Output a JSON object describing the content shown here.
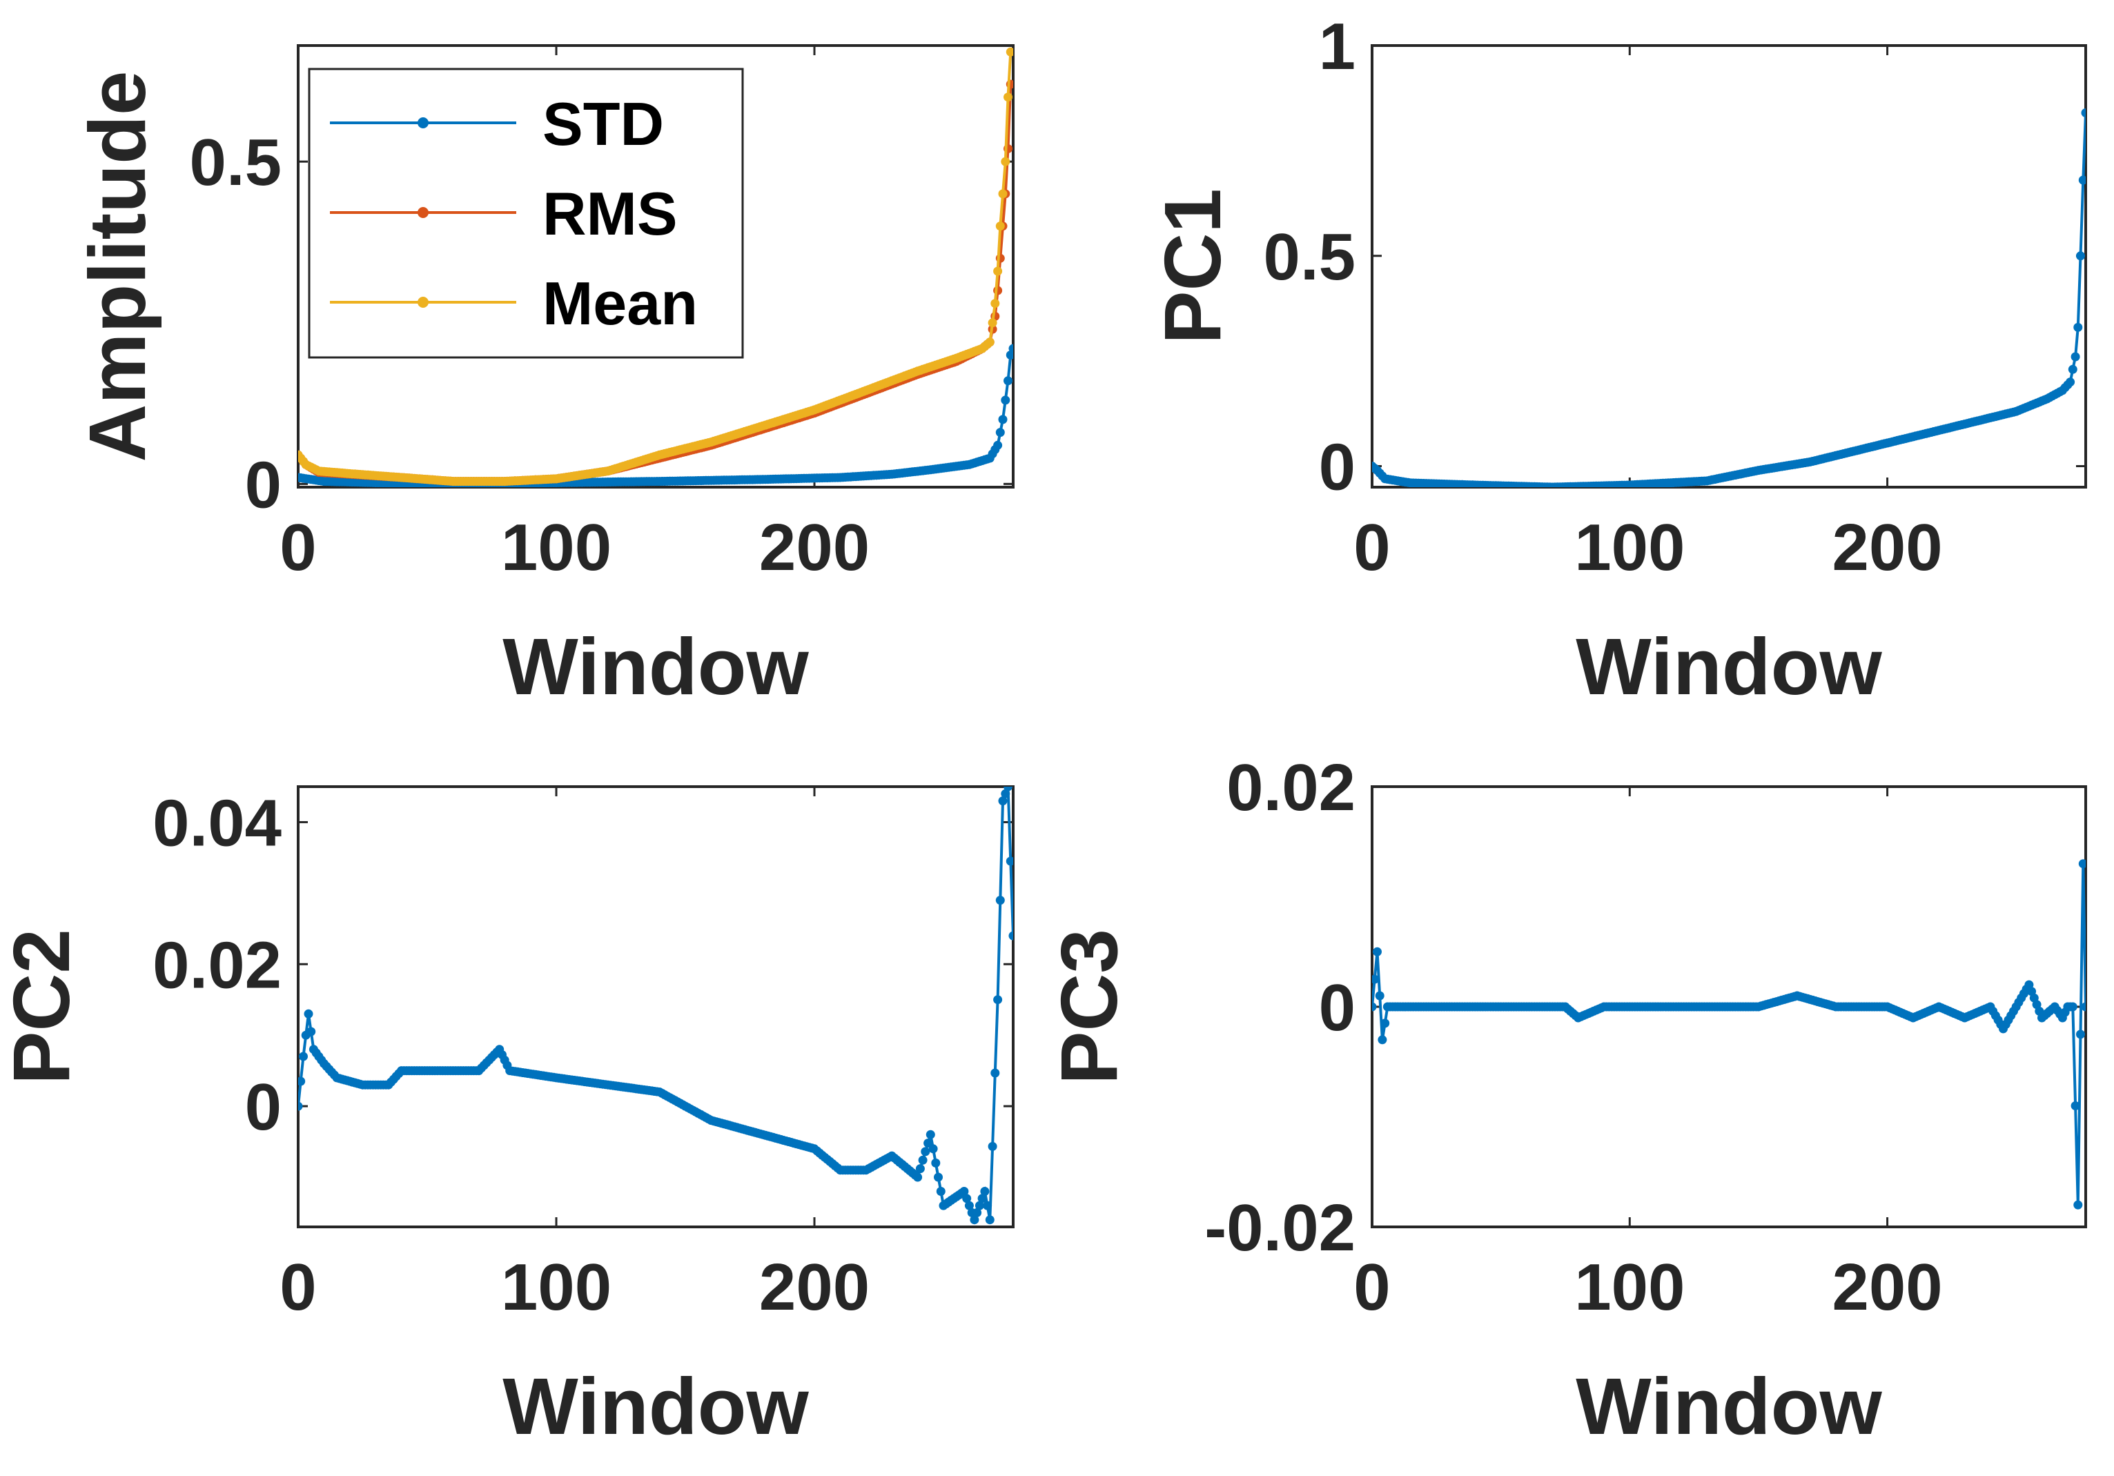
{
  "chart_data": [
    {
      "type": "line",
      "xlabel": "Window",
      "ylabel": "Amplitude",
      "xlim": [
        0,
        277
      ],
      "ylim": [
        -0.005,
        0.68
      ],
      "xticks": [
        0,
        100,
        200
      ],
      "xtick_labels": [
        "0",
        "100",
        "200"
      ],
      "yticks": [
        0,
        0.5
      ],
      "ytick_labels": [
        "0",
        "0.5"
      ],
      "legend": {
        "position": "top-left",
        "entries": [
          "STD",
          "RMS",
          "Mean"
        ]
      },
      "series": [
        {
          "name": "STD",
          "color": "#0072BD",
          "points": [
            [
              0,
              0.01
            ],
            [
              10,
              0.004
            ],
            [
              30,
              0.002
            ],
            [
              60,
              0.001
            ],
            [
              100,
              0.002
            ],
            [
              140,
              0.004
            ],
            [
              180,
              0.007
            ],
            [
              210,
              0.01
            ],
            [
              230,
              0.015
            ],
            [
              245,
              0.022
            ],
            [
              260,
              0.03
            ],
            [
              268,
              0.04
            ],
            [
              271,
              0.06
            ],
            [
              273,
              0.1
            ],
            [
              275,
              0.16
            ],
            [
              276,
              0.2
            ],
            [
              277,
              0.21
            ]
          ]
        },
        {
          "name": "RMS",
          "color": "#D95319",
          "points": [
            [
              0,
              0.045
            ],
            [
              3,
              0.03
            ],
            [
              8,
              0.018
            ],
            [
              20,
              0.015
            ],
            [
              40,
              0.01
            ],
            [
              60,
              0.004
            ],
            [
              80,
              0.004
            ],
            [
              100,
              0.008
            ],
            [
              120,
              0.02
            ],
            [
              140,
              0.04
            ],
            [
              160,
              0.06
            ],
            [
              180,
              0.085
            ],
            [
              200,
              0.11
            ],
            [
              220,
              0.14
            ],
            [
              240,
              0.17
            ],
            [
              255,
              0.19
            ],
            [
              265,
              0.21
            ],
            [
              268,
              0.22
            ],
            [
              270,
              0.26
            ],
            [
              271,
              0.3
            ],
            [
              272,
              0.35
            ],
            [
              273,
              0.4
            ],
            [
              274,
              0.45
            ],
            [
              275,
              0.52
            ],
            [
              276,
              0.62
            ]
          ]
        },
        {
          "name": "Mean",
          "color": "#EDB120",
          "points": [
            [
              0,
              0.045
            ],
            [
              3,
              0.03
            ],
            [
              8,
              0.02
            ],
            [
              20,
              0.016
            ],
            [
              40,
              0.01
            ],
            [
              60,
              0.004
            ],
            [
              80,
              0.004
            ],
            [
              100,
              0.008
            ],
            [
              120,
              0.02
            ],
            [
              140,
              0.045
            ],
            [
              160,
              0.065
            ],
            [
              180,
              0.09
            ],
            [
              200,
              0.115
            ],
            [
              220,
              0.145
            ],
            [
              240,
              0.175
            ],
            [
              255,
              0.195
            ],
            [
              265,
              0.21
            ],
            [
              268,
              0.22
            ],
            [
              270,
              0.28
            ],
            [
              271,
              0.33
            ],
            [
              272,
              0.4
            ],
            [
              273,
              0.45
            ],
            [
              274,
              0.5
            ],
            [
              275,
              0.6
            ],
            [
              276,
              0.67
            ]
          ]
        }
      ]
    },
    {
      "type": "line",
      "xlabel": "Window",
      "ylabel": "PC1",
      "xlim": [
        0,
        277
      ],
      "ylim": [
        -0.05,
        1.0
      ],
      "xticks": [
        0,
        100,
        200
      ],
      "xtick_labels": [
        "0",
        "100",
        "200"
      ],
      "yticks": [
        0,
        0.5,
        1
      ],
      "ytick_labels": [
        "0",
        "0.5",
        "1"
      ],
      "series": [
        {
          "name": "PC1",
          "color": "#0072BD",
          "points": [
            [
              0,
              0.0
            ],
            [
              2,
              -0.01
            ],
            [
              5,
              -0.03
            ],
            [
              15,
              -0.04
            ],
            [
              40,
              -0.045
            ],
            [
              70,
              -0.05
            ],
            [
              100,
              -0.045
            ],
            [
              130,
              -0.035
            ],
            [
              150,
              -0.01
            ],
            [
              170,
              0.01
            ],
            [
              190,
              0.04
            ],
            [
              210,
              0.07
            ],
            [
              230,
              0.1
            ],
            [
              250,
              0.13
            ],
            [
              262,
              0.16
            ],
            [
              268,
              0.18
            ],
            [
              271,
              0.2
            ],
            [
              273,
              0.26
            ],
            [
              274,
              0.33
            ],
            [
              275,
              0.5
            ],
            [
              276,
              0.68
            ],
            [
              277,
              0.84
            ]
          ]
        }
      ]
    },
    {
      "type": "line",
      "xlabel": "Window",
      "ylabel": "PC2",
      "xlim": [
        0,
        277
      ],
      "ylim": [
        -0.017,
        0.045
      ],
      "xticks": [
        0,
        100,
        200
      ],
      "xtick_labels": [
        "0",
        "100",
        "200"
      ],
      "yticks": [
        0,
        0.02,
        0.04
      ],
      "ytick_labels": [
        "0",
        "0.02",
        "0.04"
      ],
      "series": [
        {
          "name": "PC2",
          "color": "#0072BD",
          "points": [
            [
              0,
              0.0
            ],
            [
              2,
              0.007
            ],
            [
              4,
              0.013
            ],
            [
              6,
              0.008
            ],
            [
              10,
              0.006
            ],
            [
              15,
              0.004
            ],
            [
              25,
              0.003
            ],
            [
              35,
              0.003
            ],
            [
              40,
              0.005
            ],
            [
              50,
              0.005
            ],
            [
              60,
              0.005
            ],
            [
              70,
              0.005
            ],
            [
              78,
              0.008
            ],
            [
              82,
              0.005
            ],
            [
              100,
              0.004
            ],
            [
              120,
              0.003
            ],
            [
              140,
              0.002
            ],
            [
              160,
              -0.002
            ],
            [
              180,
              -0.004
            ],
            [
              200,
              -0.006
            ],
            [
              210,
              -0.009
            ],
            [
              220,
              -0.009
            ],
            [
              230,
              -0.007
            ],
            [
              240,
              -0.01
            ],
            [
              245,
              -0.004
            ],
            [
              250,
              -0.014
            ],
            [
              258,
              -0.012
            ],
            [
              262,
              -0.016
            ],
            [
              266,
              -0.012
            ],
            [
              268,
              -0.016
            ],
            [
              271,
              0.015
            ],
            [
              273,
              0.043
            ],
            [
              275,
              0.045
            ],
            [
              277,
              0.024
            ]
          ]
        }
      ]
    },
    {
      "type": "line",
      "xlabel": "Window",
      "ylabel": "PC3",
      "xlim": [
        0,
        277
      ],
      "ylim": [
        -0.02,
        0.02
      ],
      "xticks": [
        0,
        100,
        200
      ],
      "xtick_labels": [
        "0",
        "100",
        "200"
      ],
      "yticks": [
        -0.02,
        0,
        0.02
      ],
      "ytick_labels": [
        "-0.02",
        "0",
        "0.02"
      ],
      "series": [
        {
          "name": "PC3",
          "color": "#0072BD",
          "points": [
            [
              0,
              0.0
            ],
            [
              2,
              0.005
            ],
            [
              4,
              -0.003
            ],
            [
              6,
              0.0
            ],
            [
              10,
              0.0
            ],
            [
              20,
              0.0
            ],
            [
              40,
              0.0
            ],
            [
              60,
              0.0
            ],
            [
              75,
              0.0
            ],
            [
              80,
              -0.001
            ],
            [
              90,
              0.0
            ],
            [
              120,
              0.0
            ],
            [
              150,
              0.0
            ],
            [
              165,
              0.001
            ],
            [
              180,
              0.0
            ],
            [
              200,
              0.0
            ],
            [
              210,
              -0.001
            ],
            [
              220,
              0.0
            ],
            [
              230,
              -0.001
            ],
            [
              240,
              0.0
            ],
            [
              245,
              -0.002
            ],
            [
              250,
              0.0
            ],
            [
              255,
              0.002
            ],
            [
              260,
              -0.001
            ],
            [
              265,
              0.0
            ],
            [
              268,
              -0.001
            ],
            [
              270,
              0.0
            ],
            [
              272,
              0.0
            ],
            [
              274,
              -0.018
            ],
            [
              276,
              0.013
            ],
            [
              277,
              0.0
            ]
          ]
        }
      ]
    }
  ]
}
